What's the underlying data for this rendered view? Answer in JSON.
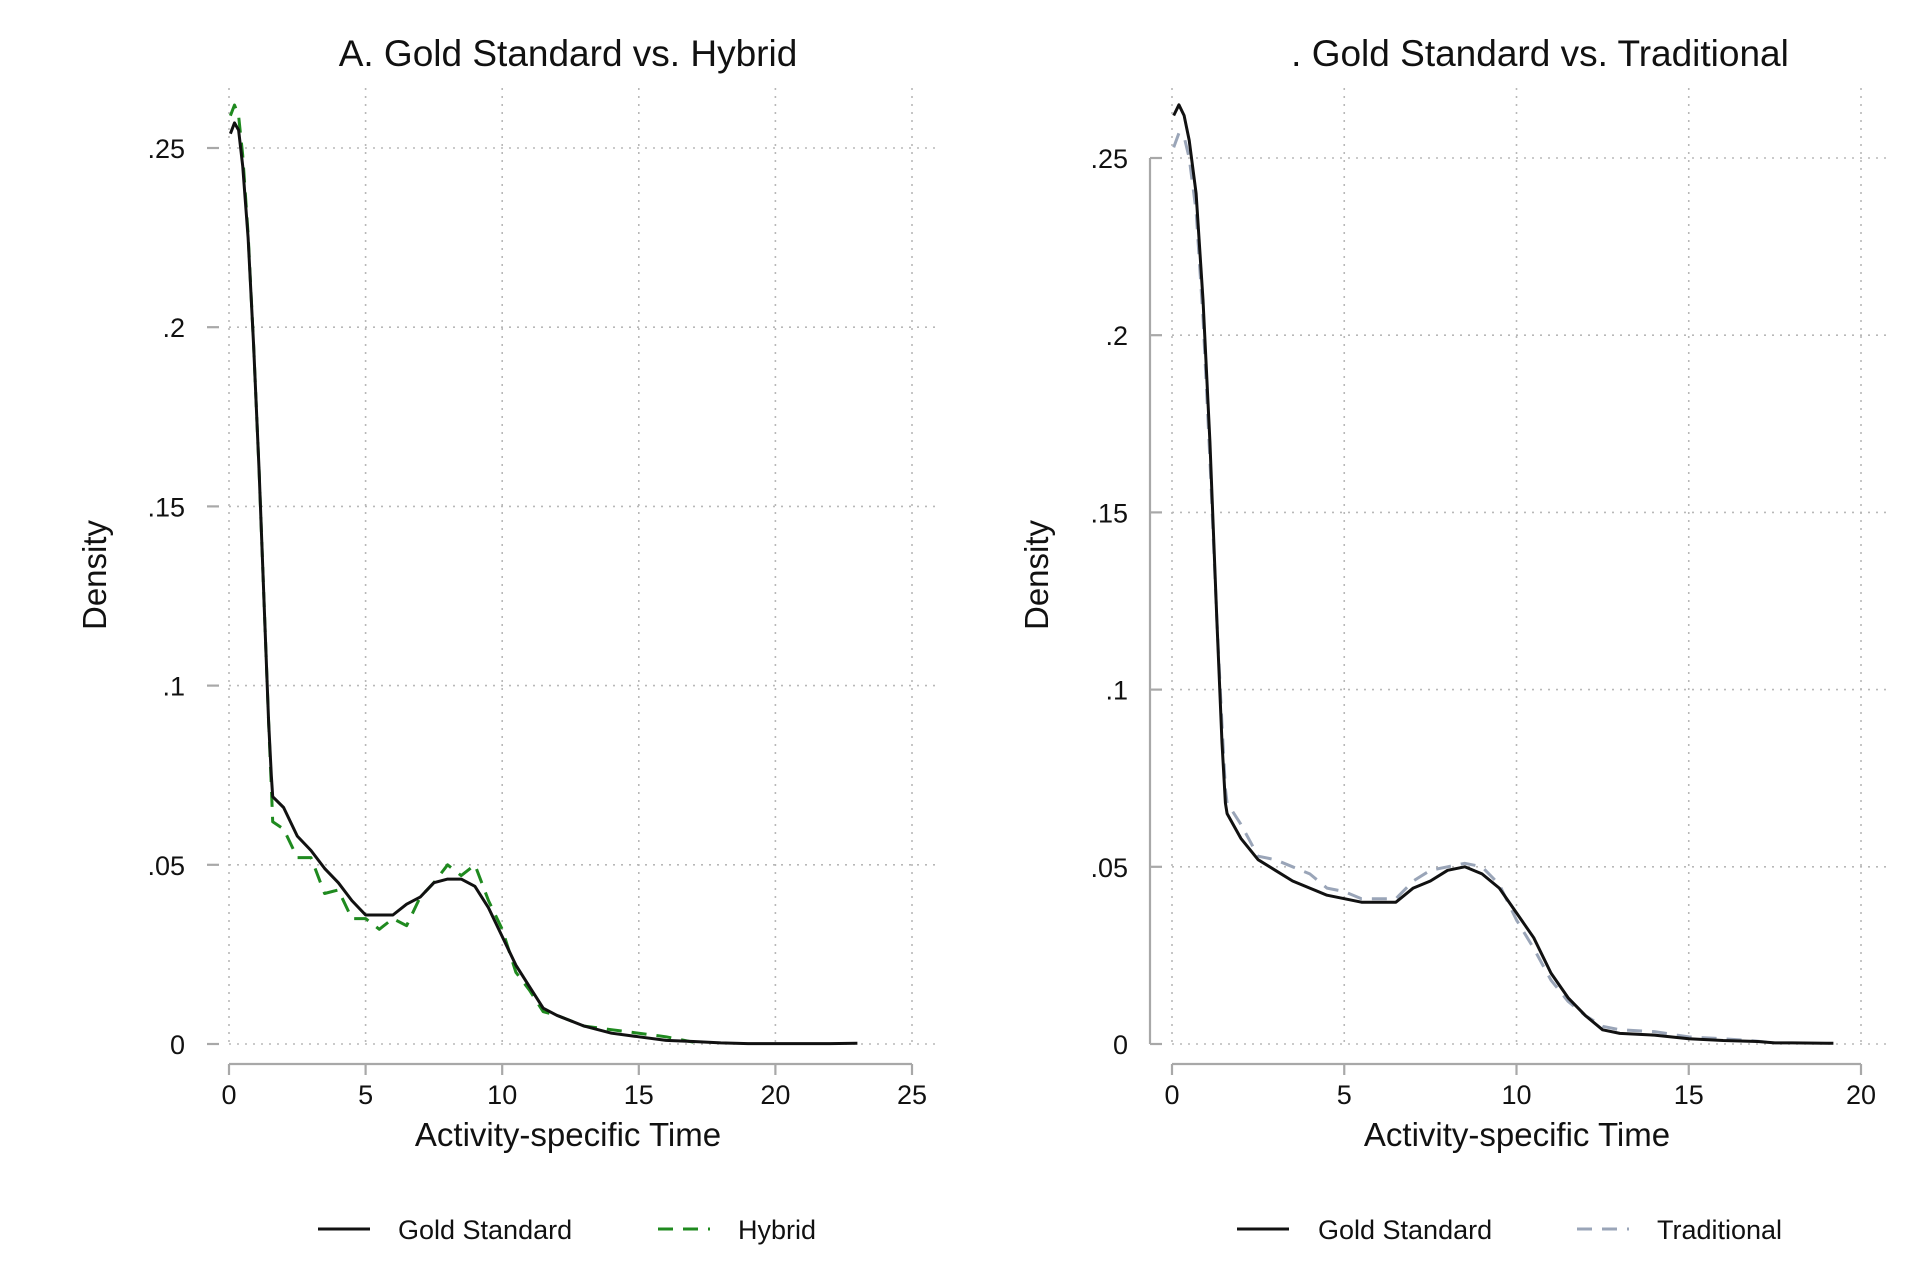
{
  "chart_data": [
    {
      "type": "line",
      "title": "A. Gold Standard vs. Hybrid",
      "xlabel": "Activity-specific Time",
      "ylabel": "Density",
      "xlim": [
        0,
        25
      ],
      "ylim": [
        0,
        0.25
      ],
      "x_ticks": [
        0,
        5,
        10,
        15,
        20,
        25
      ],
      "x_tick_labels": [
        "0",
        "5",
        "10",
        "15",
        "20",
        "25"
      ],
      "y_ticks": [
        0,
        0.05,
        0.1,
        0.15,
        0.2,
        0.25
      ],
      "y_tick_labels": [
        "0",
        ".05",
        ".1",
        ".15",
        ".2",
        ".25"
      ],
      "grid": true,
      "legend_position": "bottom",
      "series": [
        {
          "name": "Gold Standard",
          "style": "solid",
          "color": "#111111",
          "x": [
            0.05,
            0.2,
            0.35,
            0.5,
            0.7,
            0.9,
            1.1,
            1.3,
            1.45,
            1.55,
            1.6,
            2.0,
            2.5,
            3.0,
            3.5,
            4.0,
            4.5,
            5.0,
            5.5,
            6.0,
            6.5,
            7.0,
            7.5,
            8.0,
            8.5,
            9.0,
            9.5,
            10.0,
            10.5,
            11.0,
            11.5,
            12.0,
            13.0,
            14.0,
            15.0,
            16.0,
            17.0,
            18.0,
            19.0,
            20.0,
            21.0,
            22.0,
            23.0
          ],
          "y": [
            0.254,
            0.257,
            0.255,
            0.245,
            0.225,
            0.195,
            0.16,
            0.12,
            0.09,
            0.075,
            0.069,
            0.066,
            0.058,
            0.054,
            0.049,
            0.045,
            0.04,
            0.036,
            0.036,
            0.036,
            0.039,
            0.041,
            0.045,
            0.046,
            0.046,
            0.044,
            0.038,
            0.03,
            0.022,
            0.016,
            0.01,
            0.008,
            0.005,
            0.003,
            0.002,
            0.001,
            0.0007,
            0.0003,
            0.0001,
            0.0001,
            0.0001,
            0.0001,
            0.0002
          ]
        },
        {
          "name": "Hybrid",
          "style": "dashed",
          "color": "#1f8a1f",
          "x": [
            0.05,
            0.2,
            0.35,
            0.5,
            0.7,
            0.9,
            1.1,
            1.3,
            1.45,
            1.55,
            1.6,
            2.0,
            2.5,
            3.0,
            3.5,
            4.0,
            4.5,
            5.0,
            5.5,
            6.0,
            6.5,
            7.0,
            7.5,
            8.0,
            8.5,
            9.0,
            9.5,
            10.0,
            10.5,
            11.0,
            11.5,
            12.0,
            13.0,
            14.0,
            15.0,
            16.0,
            17.0
          ],
          "y": [
            0.259,
            0.262,
            0.259,
            0.248,
            0.226,
            0.195,
            0.16,
            0.12,
            0.09,
            0.072,
            0.062,
            0.06,
            0.052,
            0.052,
            0.042,
            0.043,
            0.035,
            0.035,
            0.032,
            0.035,
            0.033,
            0.041,
            0.045,
            0.05,
            0.047,
            0.05,
            0.04,
            0.032,
            0.02,
            0.015,
            0.009,
            0.008,
            0.005,
            0.004,
            0.003,
            0.002,
            0.0005
          ]
        }
      ]
    },
    {
      "type": "line",
      "title": ". Gold Standard vs. Traditional",
      "xlabel": "Activity-specific Time",
      "ylabel": "Density",
      "xlim": [
        0,
        20
      ],
      "ylim": [
        0,
        0.25
      ],
      "x_ticks": [
        0,
        5,
        10,
        15,
        20
      ],
      "x_tick_labels": [
        "0",
        "5",
        "10",
        "15",
        "20"
      ],
      "y_ticks": [
        0,
        0.05,
        0.1,
        0.15,
        0.2,
        0.25
      ],
      "y_tick_labels": [
        "0",
        ".05",
        ".1",
        ".15",
        ".2",
        ".25"
      ],
      "grid": true,
      "legend_position": "bottom",
      "series": [
        {
          "name": "Gold Standard",
          "style": "solid",
          "color": "#111111",
          "x": [
            0.05,
            0.2,
            0.35,
            0.5,
            0.7,
            0.9,
            1.1,
            1.3,
            1.45,
            1.55,
            1.6,
            2.0,
            2.5,
            3.0,
            3.5,
            4.0,
            4.5,
            5.0,
            5.5,
            6.0,
            6.5,
            7.0,
            7.5,
            8.0,
            8.5,
            9.0,
            9.5,
            10.0,
            10.5,
            11.0,
            11.5,
            12.0,
            12.5,
            13.0,
            14.0,
            15.0,
            16.0,
            17.0,
            17.5,
            18.0,
            19.0,
            19.2
          ],
          "y": [
            0.262,
            0.265,
            0.262,
            0.255,
            0.24,
            0.21,
            0.17,
            0.12,
            0.085,
            0.068,
            0.065,
            0.058,
            0.052,
            0.049,
            0.046,
            0.044,
            0.042,
            0.041,
            0.04,
            0.04,
            0.04,
            0.044,
            0.046,
            0.049,
            0.05,
            0.048,
            0.044,
            0.037,
            0.03,
            0.02,
            0.013,
            0.008,
            0.004,
            0.003,
            0.0025,
            0.0015,
            0.001,
            0.0007,
            0.0003,
            0.0003,
            0.0002,
            0.0002
          ]
        },
        {
          "name": "Traditional",
          "style": "dashed",
          "color": "#9aa5b8",
          "x": [
            0.05,
            0.2,
            0.35,
            0.5,
            0.7,
            0.9,
            1.1,
            1.3,
            1.45,
            1.55,
            1.6,
            2.0,
            2.5,
            3.0,
            3.5,
            4.0,
            4.5,
            5.0,
            5.5,
            6.0,
            6.5,
            7.0,
            7.5,
            8.0,
            8.5,
            9.0,
            9.5,
            10.0,
            10.5,
            11.0,
            11.5,
            12.0,
            12.5,
            13.0,
            14.0,
            15.0,
            16.0,
            17.0,
            17.5
          ],
          "y": [
            0.253,
            0.257,
            0.256,
            0.25,
            0.235,
            0.205,
            0.165,
            0.12,
            0.09,
            0.072,
            0.068,
            0.062,
            0.053,
            0.052,
            0.05,
            0.048,
            0.044,
            0.043,
            0.041,
            0.041,
            0.041,
            0.046,
            0.049,
            0.05,
            0.051,
            0.05,
            0.045,
            0.035,
            0.027,
            0.018,
            0.012,
            0.008,
            0.005,
            0.004,
            0.0035,
            0.002,
            0.0015,
            0.0008,
            0.0003
          ]
        }
      ]
    }
  ]
}
